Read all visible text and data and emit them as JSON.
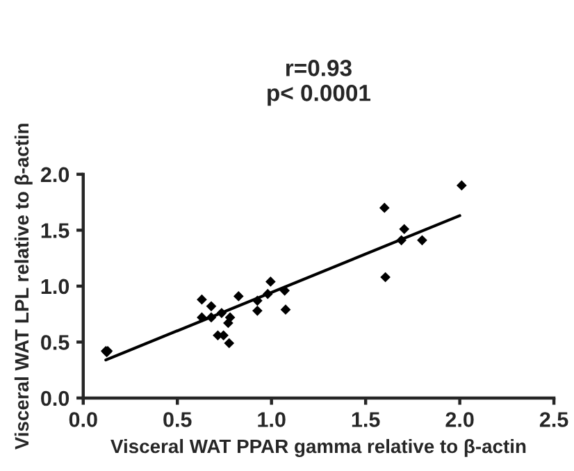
{
  "chart_data": {
    "type": "scatter",
    "title": "r=0.93\np< 0.0001",
    "xlabel": "Visceral WAT PPAR gamma relative to β-actin",
    "ylabel": "Visceral WAT LPL relative to β-actin",
    "series": [
      {
        "type": "line",
        "color": "#000000",
        "x": [
          0.12,
          2.0
        ],
        "values": [
          0.34,
          1.63
        ]
      },
      {
        "color": "#000000",
        "marker": "diamond",
        "x": [
          0.12,
          0.125,
          0.13,
          0.63,
          0.63,
          0.68,
          0.68,
          0.735,
          0.78,
          0.77,
          0.715,
          0.745,
          0.775,
          0.825,
          0.925,
          0.925,
          0.98,
          0.995,
          1.07,
          1.075,
          1.605,
          1.69,
          1.705,
          1.8,
          1.6,
          2.01
        ],
        "values": [
          0.42,
          0.41,
          0.42,
          0.88,
          0.72,
          0.82,
          0.72,
          0.76,
          0.72,
          0.67,
          0.56,
          0.56,
          0.49,
          0.91,
          0.87,
          0.78,
          0.93,
          1.04,
          0.96,
          0.79,
          1.08,
          1.41,
          1.51,
          1.41,
          1.7,
          1.9
        ]
      }
    ],
    "xlim": [
      0,
      2.5
    ],
    "ylim": [
      0,
      2.0
    ],
    "xticks": [
      {
        "value": 0,
        "label": "0.0"
      },
      0.5,
      {
        "value": 1,
        "label": "1.0"
      },
      1.5,
      {
        "value": 2,
        "label": "2.0"
      },
      2.5
    ],
    "yticks": [
      {
        "value": 0,
        "label": "0.0"
      },
      0.5,
      {
        "value": 1,
        "label": "1.0"
      },
      1.5,
      {
        "value": 2,
        "label": "2.0"
      }
    ],
    "grid": false,
    "legend": false
  }
}
